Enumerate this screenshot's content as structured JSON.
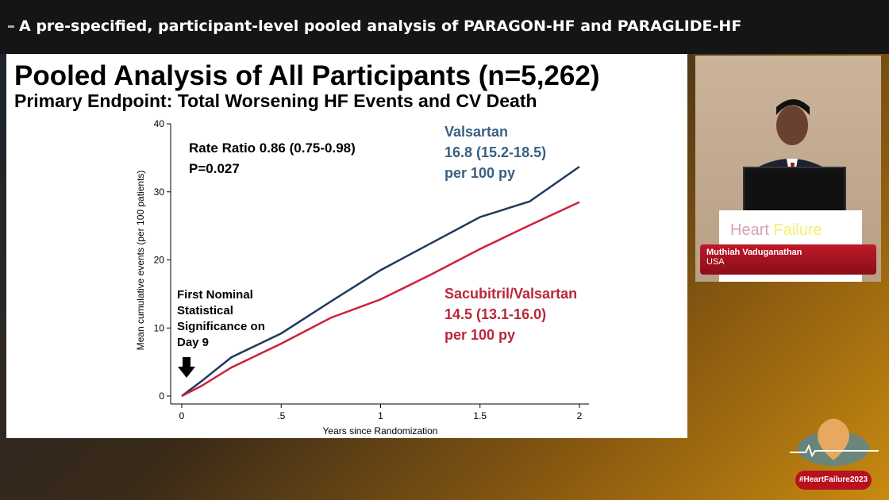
{
  "header": {
    "title": "A pre-specified, participant-level pooled analysis of PARAGON-HF and PARAGLIDE-HF"
  },
  "slide": {
    "title": "Pooled Analysis of All Participants (n=5,262)",
    "subtitle": "Primary Endpoint: Total Worsening HF Events and CV Death"
  },
  "speaker": {
    "name": "Muthiah Vaduganathan",
    "country": "USA",
    "podium_text_1": "Heart",
    "podium_text_2": "Failure"
  },
  "hashtag": "#HeartFailure2023",
  "chart_data": {
    "type": "line",
    "xlabel": "Years since Randomization",
    "ylabel": "Mean cumulative events (per 100 patients)",
    "xlim": [
      0,
      2
    ],
    "ylim": [
      0,
      40
    ],
    "xticks": [
      {
        "v": 0,
        "label": "0"
      },
      {
        "v": 0.5,
        "label": ".5"
      },
      {
        "v": 1,
        "label": "1"
      },
      {
        "v": 1.5,
        "label": "1.5"
      },
      {
        "v": 2,
        "label": "2"
      }
    ],
    "yticks": [
      {
        "v": 0,
        "label": "0"
      },
      {
        "v": 10,
        "label": "10"
      },
      {
        "v": 20,
        "label": "20"
      },
      {
        "v": 30,
        "label": "30"
      },
      {
        "v": 40,
        "label": "40"
      }
    ],
    "grid": false,
    "x": [
      0,
      0.1,
      0.25,
      0.5,
      0.75,
      1,
      1.25,
      1.5,
      1.75,
      2
    ],
    "series": [
      {
        "name": "Valsartan",
        "color": "#1f3a5c",
        "label_color": "#3a5f80",
        "values": [
          0,
          2.2,
          5.7,
          9.2,
          13.9,
          18.5,
          22.4,
          26.3,
          28.6,
          33.7
        ],
        "rate": "16.8 (15.2-18.5)",
        "unit": "per 100 py"
      },
      {
        "name": "Sacubitril/Valsartan",
        "color": "#d0203a",
        "label_color": "#b8283a",
        "values": [
          0,
          1.5,
          4.2,
          7.7,
          11.5,
          14.2,
          17.8,
          21.6,
          25.1,
          28.5
        ],
        "rate": "14.5 (13.1-16.0)",
        "unit": "per 100 py"
      }
    ],
    "annotations": {
      "rate_ratio": "Rate Ratio 0.86 (0.75-0.98)",
      "p_value": "P=0.027",
      "significance": [
        "First Nominal",
        "Statistical",
        "Significance on",
        "Day 9"
      ]
    }
  }
}
